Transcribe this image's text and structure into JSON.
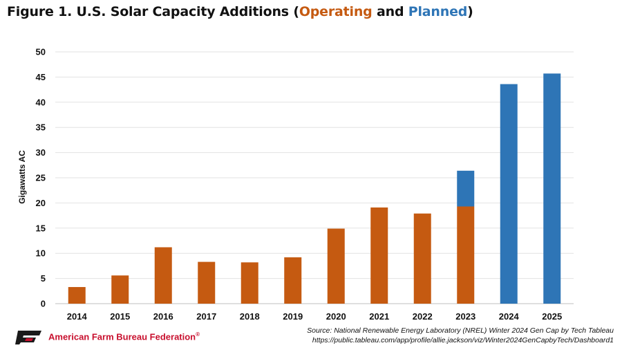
{
  "title": {
    "prefix": "Figure 1. U.S. Solar Capacity Additions (",
    "operating": "Operating",
    "and": " and ",
    "planned": "Planned",
    "suffix": ")"
  },
  "colors": {
    "operating": "#c55a11",
    "planned": "#2e75b6",
    "grid": "#e2e2e2",
    "logo": "#c8102e"
  },
  "chart_data": {
    "type": "bar",
    "stacked": true,
    "categories": [
      "2014",
      "2015",
      "2016",
      "2017",
      "2018",
      "2019",
      "2020",
      "2021",
      "2022",
      "2023",
      "2024",
      "2025"
    ],
    "series": [
      {
        "name": "Operating",
        "values": [
          3.3,
          5.6,
          11.2,
          8.3,
          8.2,
          9.2,
          14.9,
          19.1,
          17.9,
          19.3,
          0,
          0
        ]
      },
      {
        "name": "Planned",
        "values": [
          0,
          0,
          0,
          0,
          0,
          0,
          0,
          0,
          0,
          7.1,
          43.6,
          45.7
        ]
      }
    ],
    "ylabel": "Gigawatts AC",
    "xlabel": "",
    "ylim": [
      0,
      50
    ],
    "yticks": [
      0,
      5,
      10,
      15,
      20,
      25,
      30,
      35,
      40,
      45,
      50
    ],
    "grid": true,
    "legend": "none"
  },
  "footer": {
    "org": "American Farm Bureau Federation",
    "trademark": "®",
    "logo_icon": "fb-logo-icon",
    "source_line1": "Source: National Renewable Energy Laboratory (NREL) Winter 2024 Gen Cap by Tech Tableau",
    "source_line2": "https://public.tableau.com/app/profile/allie.jackson/viz/Winter2024GenCapbyTech/Dashboard1"
  }
}
